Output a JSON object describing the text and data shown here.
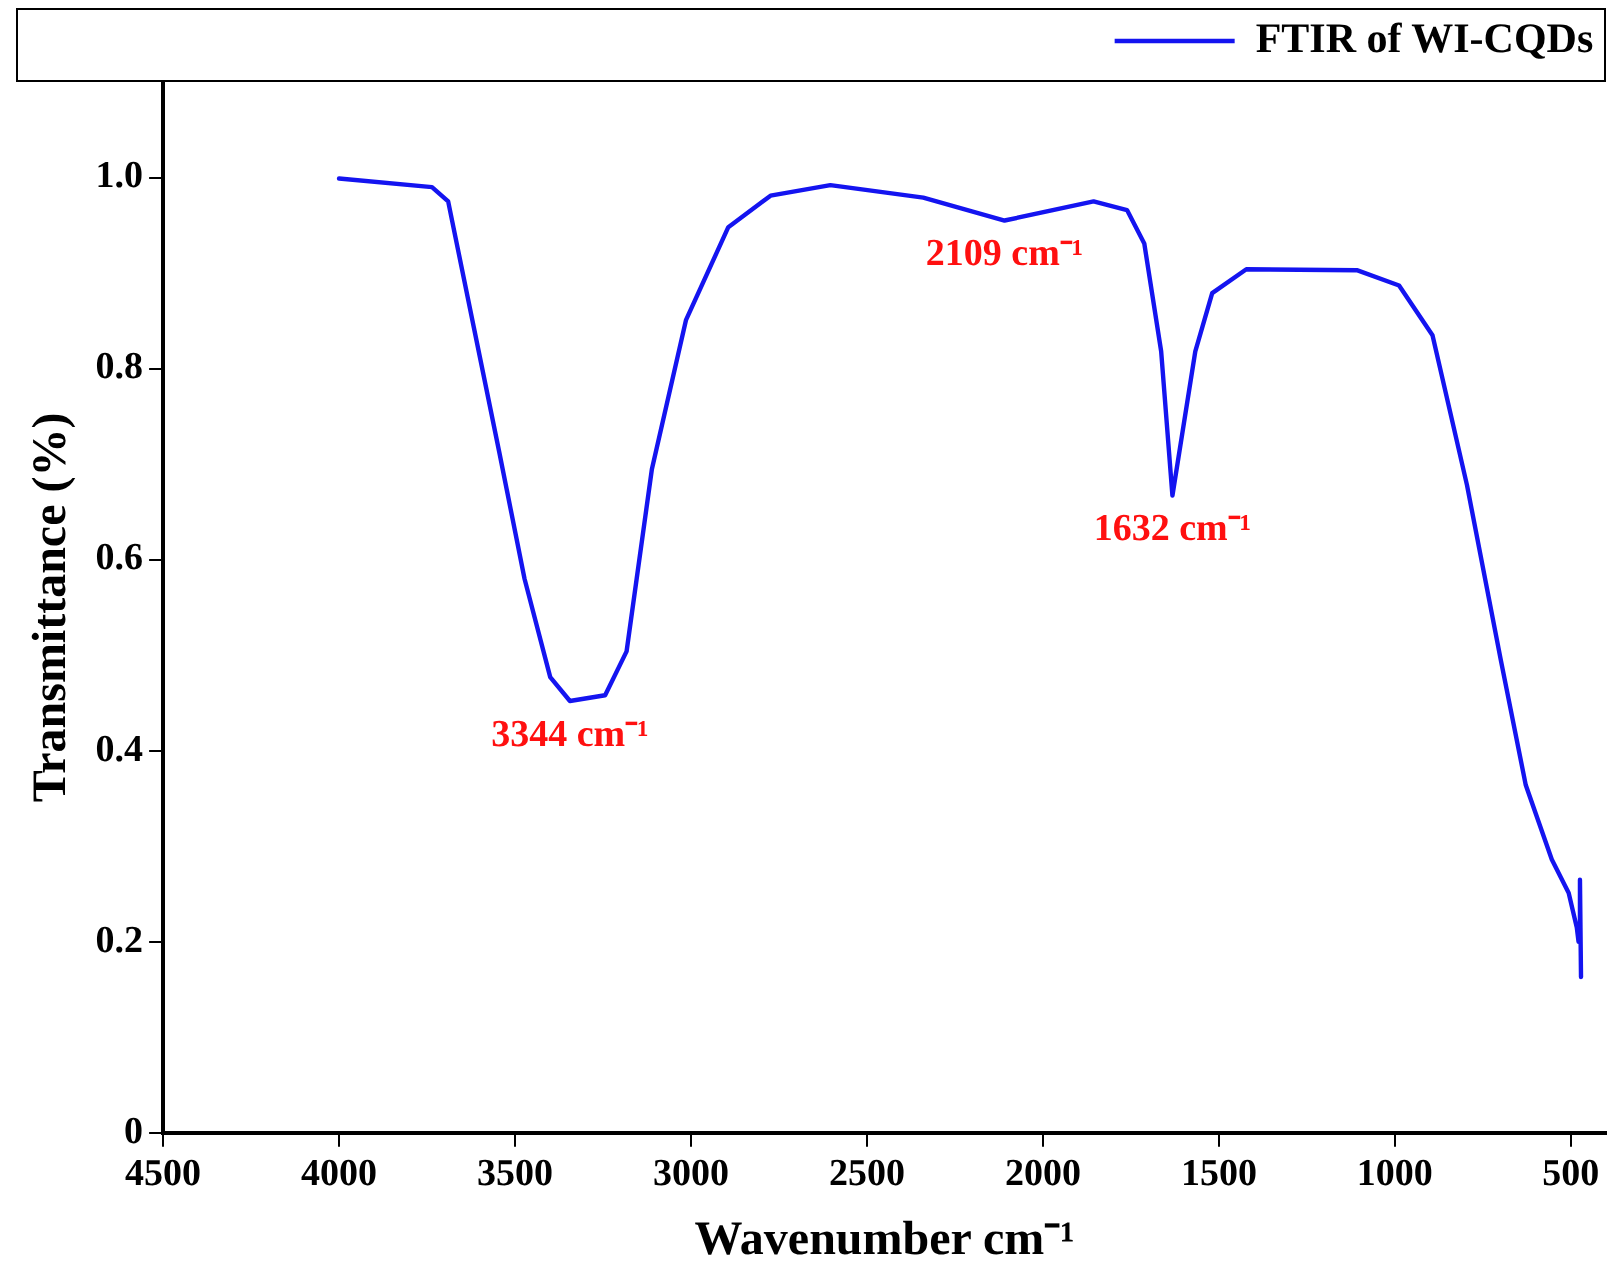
{
  "chart_data": {
    "type": "line",
    "xlabel": "Wavenumber cm⁻¹",
    "ylabel": "Transmittance (%)",
    "xlim": [
      4500,
      400
    ],
    "xticks": [
      4500,
      4000,
      3500,
      3000,
      2500,
      2000,
      1500,
      1000,
      500
    ],
    "ylim": [
      0,
      1.1
    ],
    "yticks": [
      0,
      {
        "value": 0.2,
        "label": "0.2"
      },
      {
        "value": 0.4,
        "label": "0.4"
      },
      {
        "value": 0.6,
        "label": "0.6"
      },
      {
        "value": 0.8,
        "label": "0.8"
      },
      {
        "value": 1.0,
        "label": "1.0"
      }
    ],
    "grid": false,
    "legend": "top right",
    "marker": "none",
    "line_style": "solid",
    "series": [
      {
        "name": "FTIR of WI-CQDs",
        "color": "#1414f0",
        "x": [
          4000,
          3736,
          3690,
          3617,
          3545,
          3473,
          3400,
          3344,
          3244,
          3183,
          3111,
          3014,
          2894,
          2774,
          2604,
          2340,
          2109,
          1856,
          1761,
          1712,
          1664,
          1632,
          1567,
          1519,
          1422,
          1108,
          988,
          893,
          795,
          699,
          628,
          554,
          506,
          483,
          478,
          474,
          471
        ],
        "values": [
          0.999,
          0.99,
          0.975,
          0.843,
          0.713,
          0.58,
          0.477,
          0.452,
          0.458,
          0.504,
          0.695,
          0.851,
          0.948,
          0.981,
          0.992,
          0.979,
          0.955,
          0.975,
          0.966,
          0.931,
          0.818,
          0.667,
          0.818,
          0.879,
          0.904,
          0.903,
          0.887,
          0.835,
          0.678,
          0.495,
          0.364,
          0.286,
          0.251,
          0.215,
          0.2,
          0.265,
          0.163
        ]
      }
    ],
    "annotations": [
      {
        "text": "3344 cm⁻¹",
        "x": 3344,
        "y": 0.452
      },
      {
        "text": "2109 cm⁻¹",
        "x": 2109,
        "y": 0.955
      },
      {
        "text": "1632 cm⁻¹",
        "x": 1632,
        "y": 0.667
      }
    ]
  }
}
